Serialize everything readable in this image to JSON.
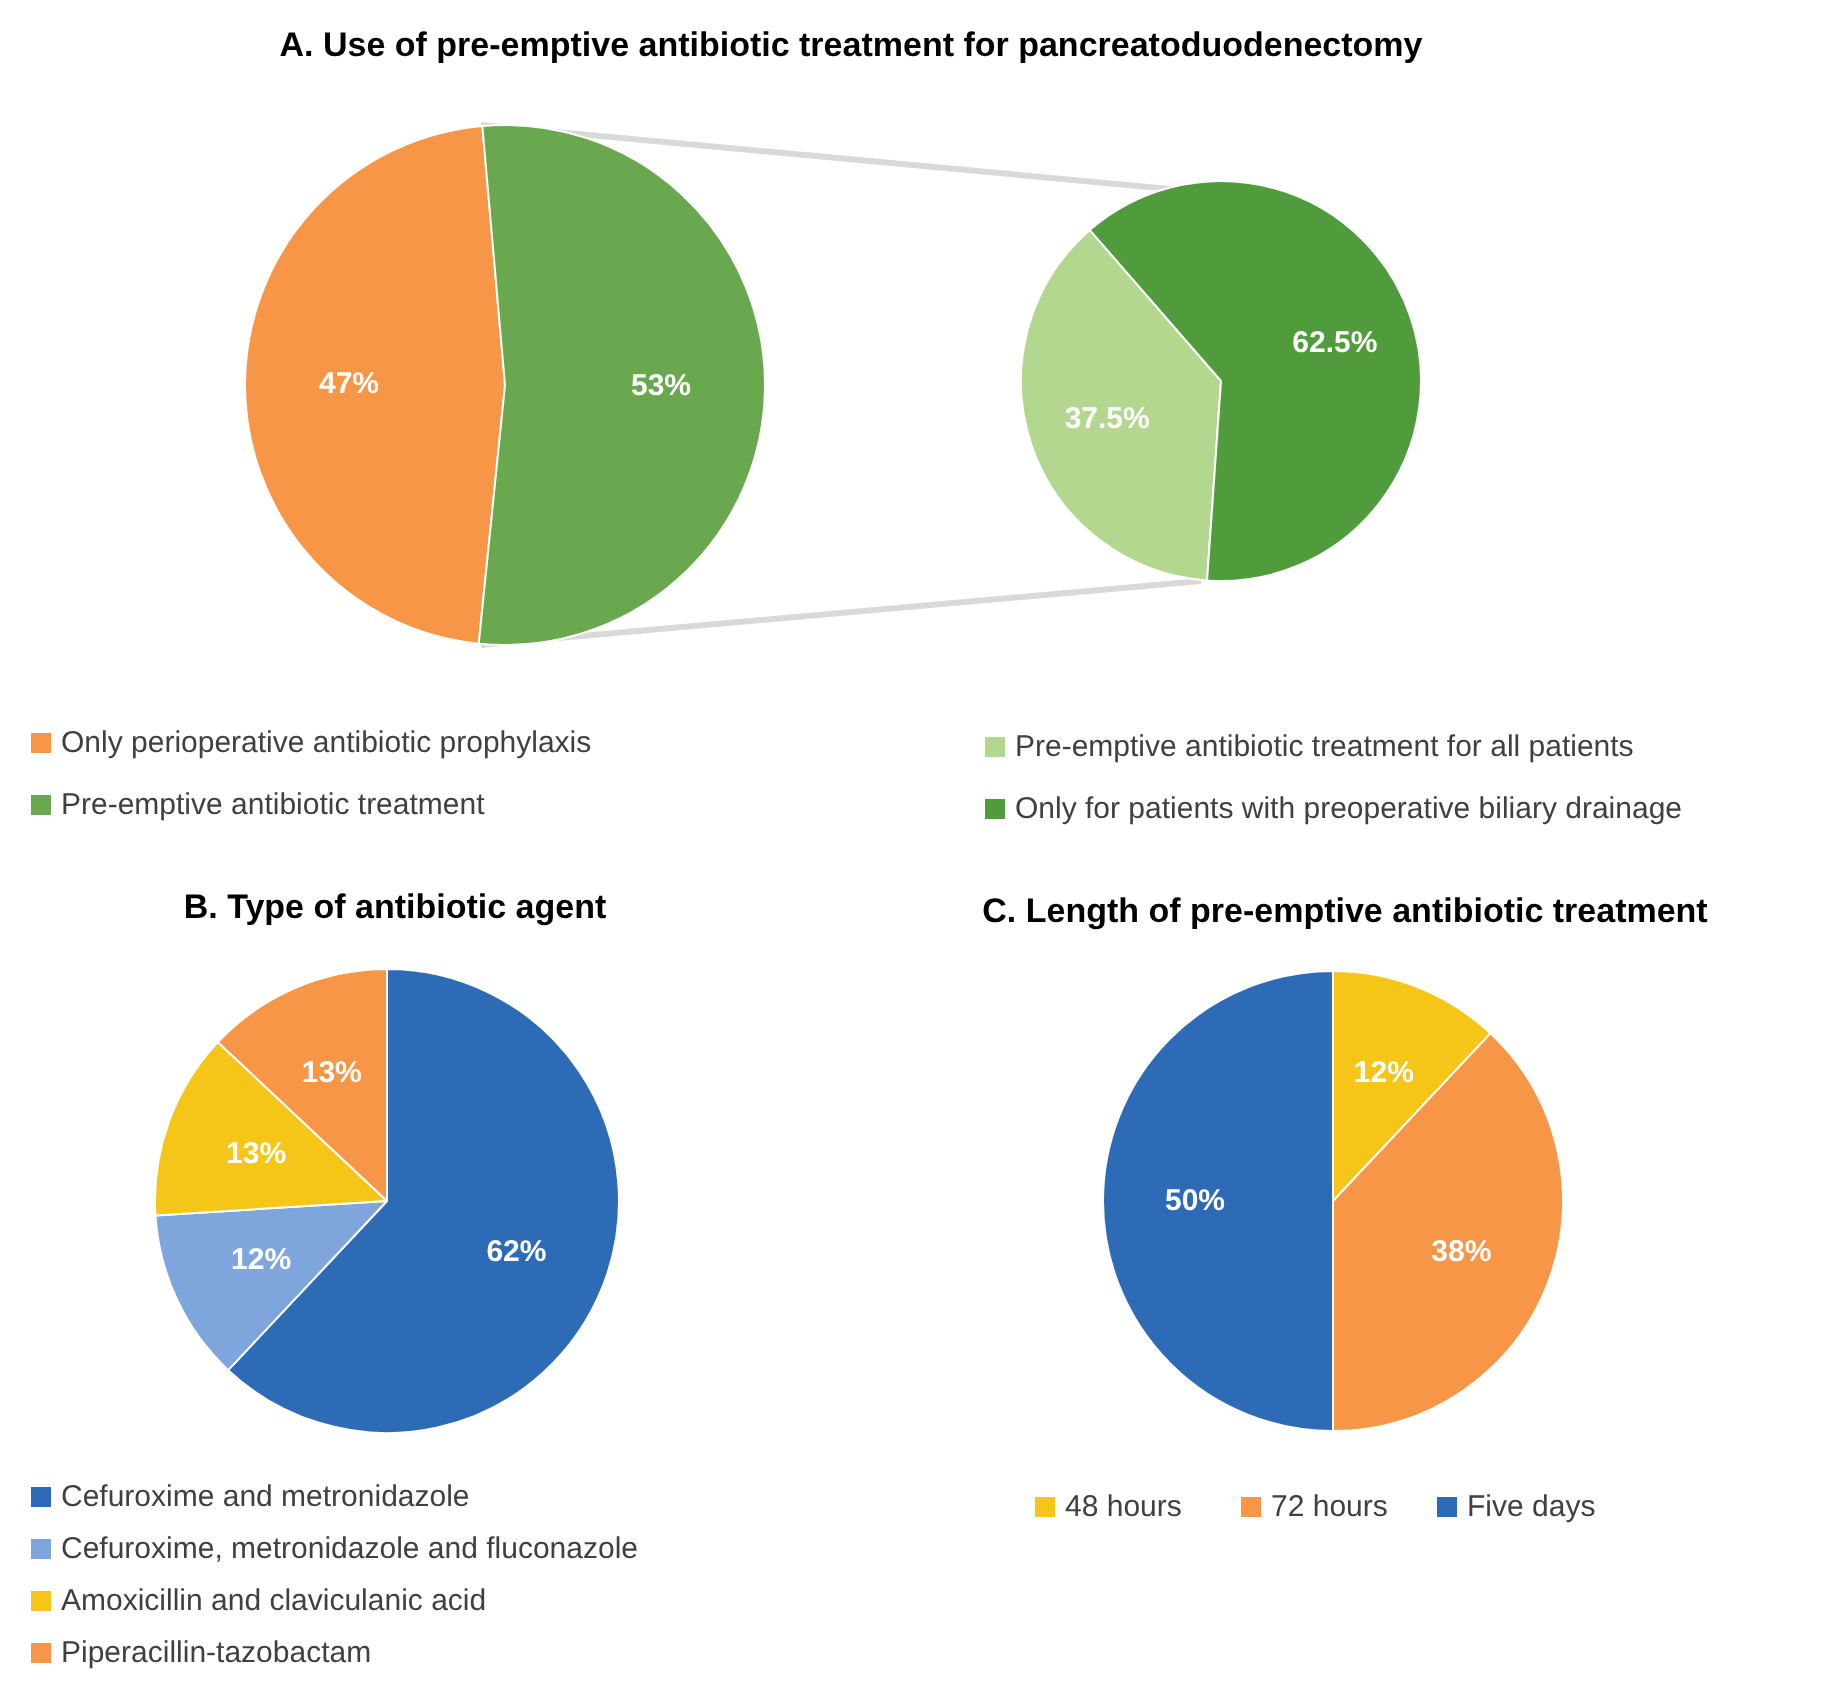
{
  "chart_data": [
    {
      "type": "pie",
      "title": "A. Use of pre-emptive antibiotic treatment for pancreatoduodenectomy",
      "categories": [
        "Only perioperative antibiotic prophylaxis",
        "Pre-emptive antibiotic treatment"
      ],
      "values": [
        47,
        53
      ],
      "colors": [
        "#f79646",
        "#6aa84f"
      ],
      "value_labels": [
        "47%",
        "53%"
      ],
      "legend": "bottom"
    },
    {
      "type": "pie",
      "categories": [
        "Pre-emptive antibiotic treatment for all patients",
        "Only for patients with preoperative biliary drainage"
      ],
      "values": [
        37.5,
        62.5
      ],
      "colors": [
        "#b3d78f",
        "#509b3c"
      ],
      "value_labels": [
        "37.5%",
        "62.5%"
      ],
      "legend": "bottom"
    },
    {
      "type": "pie",
      "title": "B. Type of antibiotic agent",
      "categories": [
        "Cefuroxime and metronidazole",
        "Cefuroxime, metronidazole and fluconazole",
        "Amoxicillin and claviculanic acid",
        "Piperacillin-tazobactam"
      ],
      "values": [
        62,
        12,
        13,
        13
      ],
      "colors": [
        "#2e6bb7",
        "#7ea6dc",
        "#f5c518",
        "#f79646"
      ],
      "value_labels": [
        "62%",
        "12%",
        "13%",
        "13%"
      ],
      "legend": "bottom"
    },
    {
      "type": "pie",
      "title": "C. Length of pre-emptive antibiotic treatment",
      "categories": [
        "48 hours",
        "72 hours",
        "Five days"
      ],
      "values": [
        12,
        38,
        50
      ],
      "colors": [
        "#f5c518",
        "#f79646",
        "#2e6bb7"
      ],
      "value_labels": [
        "12%",
        "38%",
        "50%"
      ],
      "legend": "bottom"
    }
  ]
}
